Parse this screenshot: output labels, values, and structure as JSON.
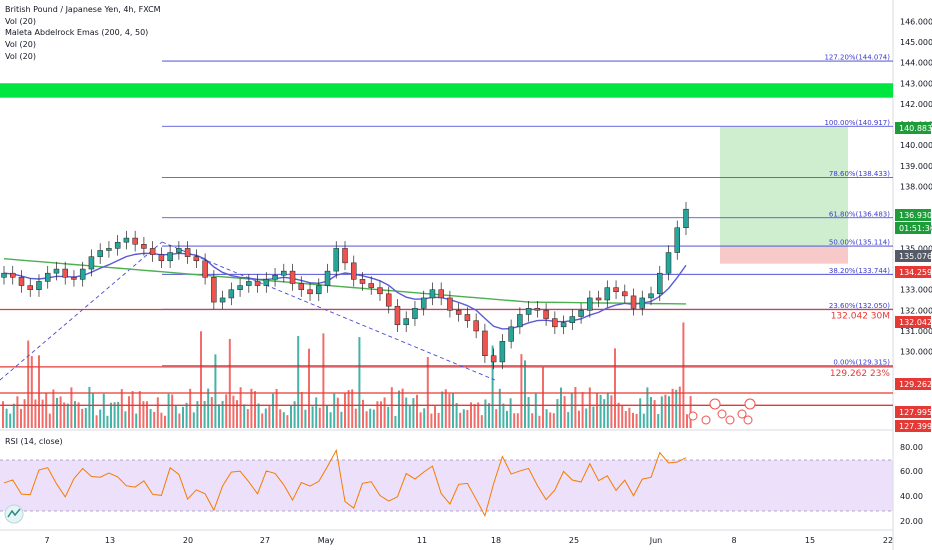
{
  "header": {
    "title": "British Pound / Japanese Yen, 4h, FXCM",
    "indicators": [
      "Vol (20)",
      "Vol (20)",
      "Maleta Abdelrock Emas (200, 4, 50)",
      "Vol (20)",
      "Vol (20)"
    ]
  },
  "rsi_label": "RSI (14, close)",
  "colors": {
    "up": "#26a69a",
    "down": "#ef5350",
    "ema_fast": "#5b5bd6",
    "ema_slow": "#4caf50",
    "fib": "#3a3ad0",
    "support": "#e53935",
    "zone": "#00e640",
    "rsi": "#f57c00",
    "rsi_band": "#ede0fb"
  },
  "chart_data": {
    "type": "candlestick",
    "ylim": [
      126.3,
      146.5
    ],
    "y_ticks": [
      "146.000",
      "145.000",
      "144.000",
      "143.000",
      "142.000",
      "141.000",
      "140.000",
      "139.000",
      "138.000",
      "136.000",
      "135.000",
      "133.000",
      "132.000",
      "131.000",
      "130.000"
    ],
    "x_ticks": [
      "7",
      "13",
      "20",
      "27",
      "May",
      "11",
      "18",
      "25",
      "Jun",
      "8",
      "15",
      "22"
    ],
    "fib_levels": [
      {
        "label": "127.20%(144.074)",
        "value": 144.074
      },
      {
        "label": "100.00%(140.917)",
        "value": 140.917
      },
      {
        "label": "78.60%(138.433)",
        "value": 138.433
      },
      {
        "label": "61.80%(136.483)",
        "value": 136.483
      },
      {
        "label": "50.00%(135.114)",
        "value": 135.114
      },
      {
        "label": "38.20%(133.744)",
        "value": 133.744
      },
      {
        "label": "23.60%(132.050)",
        "value": 132.05
      },
      {
        "label": "0.00%(129.315)",
        "value": 129.315
      }
    ],
    "support_lines": [
      {
        "value": 132.042,
        "note": "132.042 30M"
      },
      {
        "value": 129.262,
        "note": "129.262 23%"
      },
      {
        "value": 127.995,
        "note": ""
      },
      {
        "value": 127.399,
        "note": ""
      }
    ],
    "price_tags": [
      {
        "label": "140.883",
        "value": 140.883,
        "color": "#1e9c3a"
      },
      {
        "label": "136.930",
        "value": 136.93,
        "color": "#1e9c3a"
      },
      {
        "label": "01:51:36",
        "value": 136.5,
        "color": "#1e9c3a"
      },
      {
        "label": "135.076",
        "value": 135.076,
        "color": "#555a66"
      },
      {
        "label": "134.259",
        "value": 134.259,
        "color": "#e53935"
      },
      {
        "label": "132.042",
        "value": 132.042,
        "color": "#e53935"
      },
      {
        "label": "129.262",
        "value": 129.262,
        "color": "#e53935"
      },
      {
        "label": "127.995",
        "value": 127.995,
        "color": "#e53935"
      },
      {
        "label": "127.399",
        "value": 127.399,
        "color": "#e53935"
      }
    ],
    "zone": {
      "from": 142.3,
      "to": 143.0
    },
    "position": {
      "entry": 135.076,
      "target": 140.883,
      "stop": 134.259
    },
    "closes": [
      133.8,
      133.6,
      133.2,
      133.0,
      133.4,
      133.8,
      134.0,
      133.6,
      133.5,
      134.0,
      134.6,
      134.9,
      135.0,
      135.3,
      135.5,
      135.2,
      135.0,
      134.7,
      134.4,
      134.8,
      135.0,
      134.6,
      134.4,
      133.6,
      132.4,
      132.6,
      133.0,
      133.2,
      133.4,
      133.2,
      133.5,
      133.7,
      133.9,
      133.3,
      133.0,
      132.8,
      133.2,
      133.9,
      135.0,
      134.3,
      133.5,
      133.3,
      133.1,
      132.8,
      132.2,
      131.3,
      131.6,
      132.1,
      132.6,
      133.0,
      132.6,
      132.0,
      131.8,
      131.5,
      131.0,
      129.8,
      129.5,
      130.5,
      131.2,
      131.8,
      132.1,
      132.0,
      131.6,
      131.2,
      131.4,
      131.7,
      132.0,
      132.6,
      132.5,
      133.1,
      132.9,
      132.7,
      132.1,
      132.6,
      132.8,
      133.8,
      134.8,
      136.0,
      136.9
    ]
  }
}
